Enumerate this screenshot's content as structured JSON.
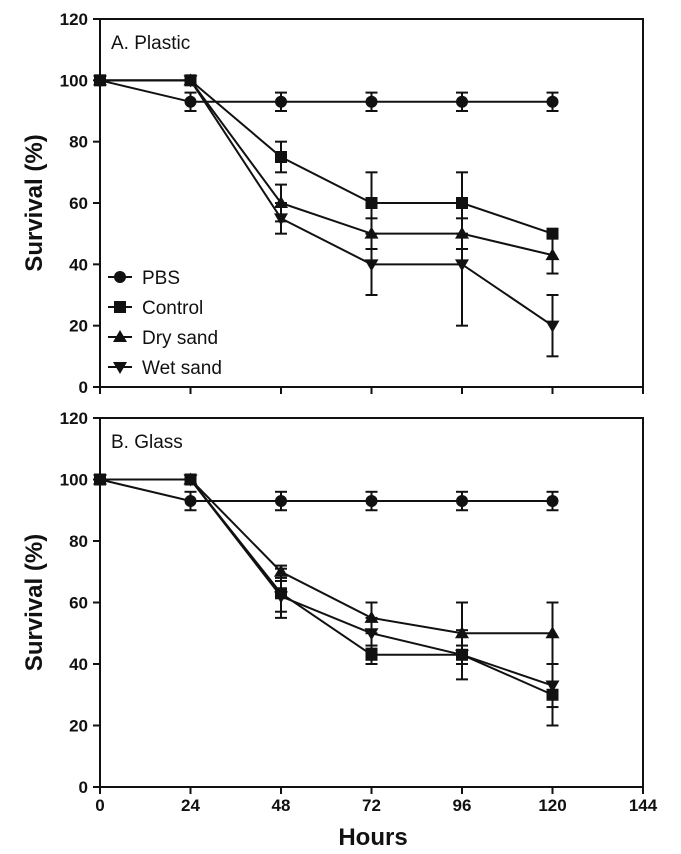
{
  "chart_data": [
    {
      "type": "line",
      "panel_label": "A. Plastic",
      "ylabel": "Survival (%)",
      "xlabel": "",
      "xlim": [
        0,
        144
      ],
      "ylim": [
        0,
        120
      ],
      "x_ticks": [
        0,
        24,
        48,
        72,
        96,
        120,
        144
      ],
      "y_ticks": [
        0,
        20,
        40,
        60,
        80,
        100,
        120
      ],
      "grid": false,
      "legend": {
        "position": "bottom-left"
      },
      "x": [
        0,
        24,
        48,
        72,
        96,
        120
      ],
      "series": [
        {
          "name": "PBS",
          "marker": "circle",
          "values": [
            100,
            93,
            93,
            93,
            93,
            93
          ],
          "errors": [
            0,
            3,
            3,
            3,
            3,
            3
          ]
        },
        {
          "name": "Control",
          "marker": "square",
          "values": [
            100,
            100,
            75,
            60,
            60,
            50
          ],
          "errors": [
            0,
            0,
            5,
            10,
            10,
            0
          ]
        },
        {
          "name": "Dry sand",
          "marker": "triangle-up",
          "values": [
            100,
            100,
            60,
            50,
            50,
            43
          ],
          "errors": [
            0,
            0,
            6,
            5,
            5,
            6
          ]
        },
        {
          "name": "Wet sand",
          "marker": "triangle-down",
          "values": [
            100,
            100,
            55,
            40,
            40,
            20
          ],
          "errors": [
            0,
            0,
            5,
            10,
            20,
            10
          ]
        }
      ]
    },
    {
      "type": "line",
      "panel_label": "B. Glass",
      "ylabel": "Survival (%)",
      "xlabel": "Hours",
      "xlim": [
        0,
        144
      ],
      "ylim": [
        0,
        120
      ],
      "x_ticks": [
        0,
        24,
        48,
        72,
        96,
        120,
        144
      ],
      "y_ticks": [
        0,
        20,
        40,
        60,
        80,
        100,
        120
      ],
      "grid": false,
      "x": [
        0,
        24,
        48,
        72,
        96,
        120
      ],
      "series": [
        {
          "name": "PBS",
          "marker": "circle",
          "values": [
            100,
            93,
            93,
            93,
            93,
            93
          ],
          "errors": [
            0,
            3,
            3,
            3,
            3,
            3
          ]
        },
        {
          "name": "Control",
          "marker": "square",
          "values": [
            100,
            100,
            63,
            43,
            43,
            30
          ],
          "errors": [
            0,
            0,
            8,
            3,
            8,
            10
          ]
        },
        {
          "name": "Dry sand",
          "marker": "triangle-up",
          "values": [
            100,
            100,
            70,
            55,
            50,
            50
          ],
          "errors": [
            0,
            0,
            2,
            5,
            10,
            10
          ]
        },
        {
          "name": "Wet sand",
          "marker": "triangle-down",
          "values": [
            100,
            100,
            62,
            50,
            43,
            33
          ],
          "errors": [
            0,
            0,
            5,
            5,
            3,
            7
          ]
        }
      ]
    }
  ],
  "colors": {
    "line": "#111111",
    "background": "#ffffff"
  }
}
